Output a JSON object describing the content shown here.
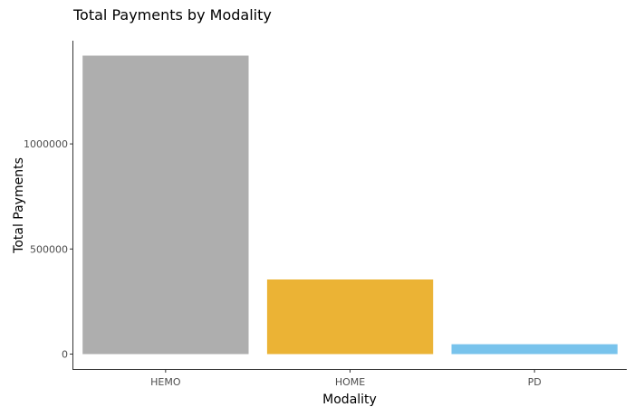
{
  "chart_data": {
    "type": "bar",
    "title": "Total Payments by Modality",
    "xlabel": "Modality",
    "ylabel": "Total Payments",
    "categories": [
      "HEMO",
      "HOME",
      "PD"
    ],
    "values": [
      1420000,
      355000,
      47000
    ],
    "colors": [
      "#aeaeae",
      "#ebb335",
      "#78c3ec"
    ],
    "yticks": [
      0,
      500000,
      1000000
    ],
    "ytick_labels": [
      "0",
      "500000",
      "1000000"
    ],
    "ylim": [
      -71000,
      1491000
    ],
    "grid": false,
    "legend": "none"
  }
}
